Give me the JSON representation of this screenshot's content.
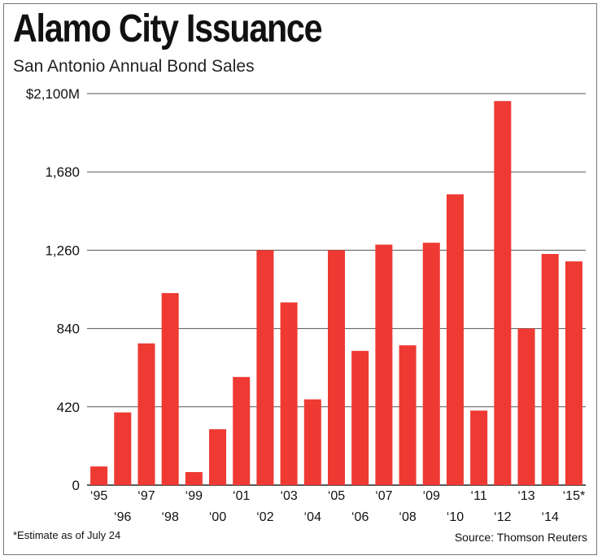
{
  "header": {
    "title": "Alamo City Issuance",
    "subtitle": "San Antonio Annual Bond Sales"
  },
  "footer": {
    "note": "*Estimate as of July 24",
    "source": "Source: Thomson Reuters"
  },
  "colors": {
    "bar": "#ee3a33",
    "grid": "#555555",
    "text": "#111111"
  },
  "chart_data": {
    "type": "bar",
    "title": "Alamo City Issuance",
    "subtitle": "San Antonio Annual Bond Sales",
    "xlabel": "",
    "ylabel": "",
    "ylim": [
      0,
      2100
    ],
    "yticks": [
      0,
      420,
      840,
      1260,
      1680,
      2100
    ],
    "ytick_labels": [
      "0",
      "420",
      "840",
      "1,260",
      "1,680",
      "$2,100M"
    ],
    "grid": true,
    "categories": [
      "‘95",
      "‘96",
      "‘97",
      "‘98",
      "‘99",
      "‘00",
      "‘01",
      "‘02",
      "‘03",
      "‘04",
      "‘05",
      "‘06",
      "‘07",
      "‘08",
      "‘09",
      "‘10",
      "‘11",
      "‘12",
      "‘13",
      "‘14",
      "‘15*"
    ],
    "values": [
      100,
      390,
      760,
      1030,
      70,
      300,
      580,
      1260,
      980,
      460,
      1260,
      720,
      1290,
      750,
      1300,
      1560,
      400,
      2060,
      840,
      1240,
      1200
    ]
  }
}
